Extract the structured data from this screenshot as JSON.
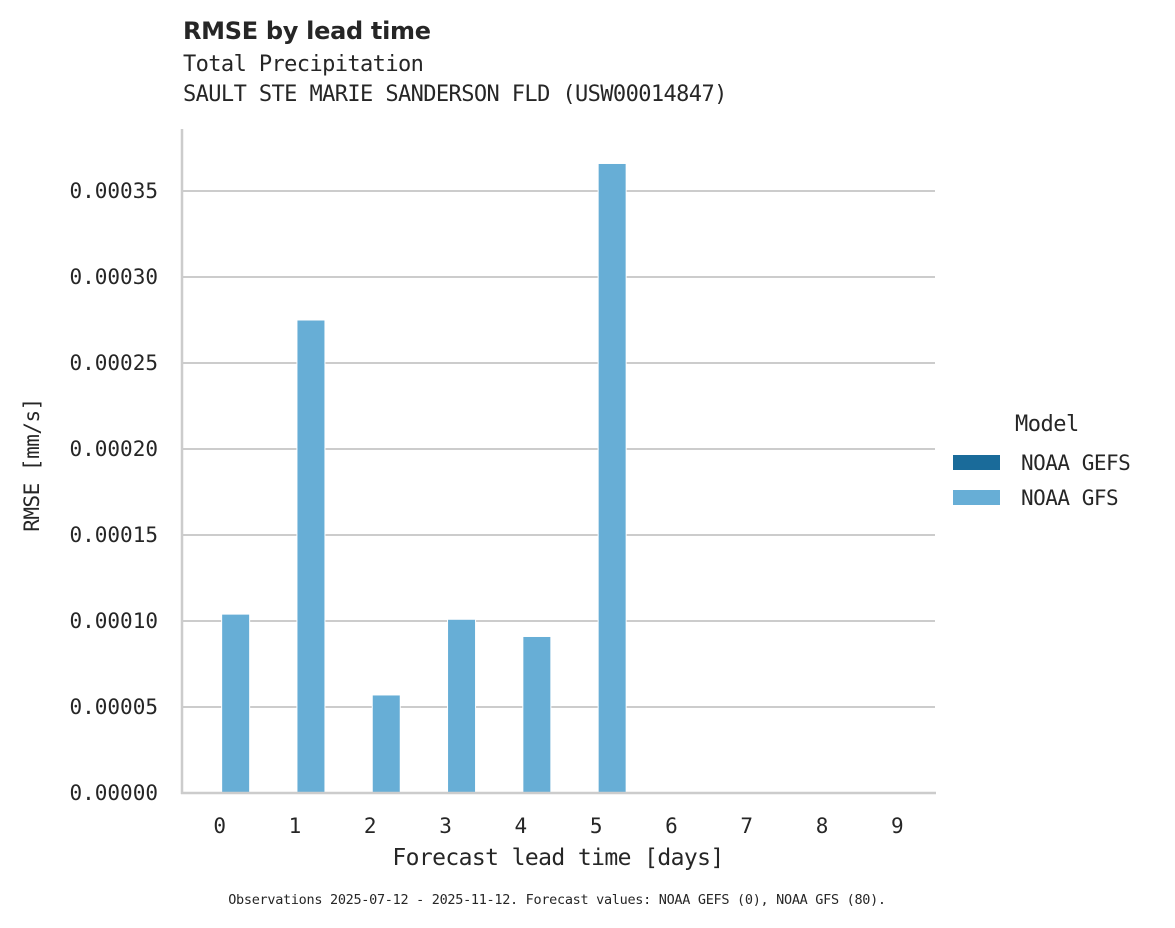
{
  "header": {
    "title": "RMSE by lead time",
    "subtitle_line1": "Total Precipitation",
    "subtitle_line2": "SAULT STE MARIE SANDERSON FLD (USW00014847)"
  },
  "axes": {
    "xlabel": "Forecast lead time [days]",
    "ylabel": "RMSE [mm/s]"
  },
  "legend": {
    "title": "Model",
    "items": [
      {
        "label": "NOAA GEFS",
        "color": "#1a6b9a"
      },
      {
        "label": "NOAA GFS",
        "color": "#67aed6"
      }
    ]
  },
  "footnote": "Observations 2025-07-12 - 2025-11-12. Forecast values: NOAA GEFS (0), NOAA GFS (80).",
  "colors": {
    "grid": "#cccccc",
    "axis": "#cccccc",
    "gefs": "#1a6b9a",
    "gfs": "#67aed6"
  },
  "chart_data": {
    "type": "bar",
    "title": "RMSE by lead time",
    "subtitle": [
      "Total Precipitation",
      "SAULT STE MARIE SANDERSON FLD (USW00014847)"
    ],
    "xlabel": "Forecast lead time [days]",
    "ylabel": "RMSE [mm/s]",
    "categories": [
      "0",
      "1",
      "2",
      "3",
      "4",
      "5",
      "6",
      "7",
      "8",
      "9"
    ],
    "series": [
      {
        "name": "NOAA GEFS",
        "color": "#1a6b9a",
        "values": [
          null,
          null,
          null,
          null,
          null,
          null,
          null,
          null,
          null,
          null
        ]
      },
      {
        "name": "NOAA GFS",
        "color": "#67aed6",
        "values": [
          0.000104,
          0.000275,
          5.7e-05,
          0.000101,
          9.1e-05,
          0.000366,
          null,
          null,
          null,
          null
        ]
      }
    ],
    "yticks": [
      "0.00000",
      "0.00005",
      "0.00010",
      "0.00015",
      "0.00020",
      "0.00025",
      "0.00030",
      "0.00035"
    ],
    "ylim": [
      0,
      0.000385
    ],
    "grid": "horizontal",
    "legend_position": "right",
    "legend_title": "Model"
  }
}
